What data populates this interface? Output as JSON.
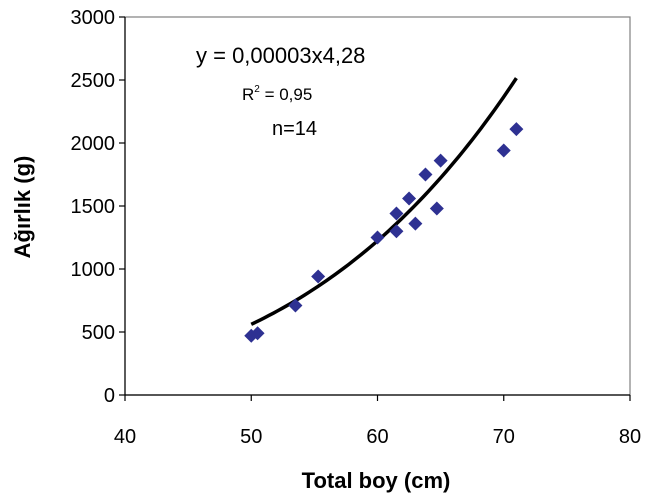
{
  "chart_data": {
    "type": "scatter",
    "title": "",
    "xlabel": "Total boy (cm)",
    "ylabel": "Ağırlık (g)",
    "xlim": [
      40,
      80
    ],
    "ylim": [
      0,
      3000
    ],
    "x_ticks": [
      40,
      50,
      60,
      70,
      80
    ],
    "y_ticks": [
      0,
      500,
      1000,
      1500,
      2000,
      2500,
      3000
    ],
    "x_tick_labels": [
      "40",
      "50",
      "60",
      "70",
      "80"
    ],
    "y_tick_labels": [
      "0",
      "500",
      "1000",
      "1500",
      "2000",
      "2500",
      "3000"
    ],
    "grid": false,
    "legend": "none",
    "series": [
      {
        "marker": "diamond",
        "color": "#2E3192",
        "points": [
          {
            "x": 50.0,
            "y": 470
          },
          {
            "x": 50.5,
            "y": 490
          },
          {
            "x": 53.5,
            "y": 710
          },
          {
            "x": 55.3,
            "y": 940
          },
          {
            "x": 60.0,
            "y": 1250
          },
          {
            "x": 61.5,
            "y": 1300
          },
          {
            "x": 61.5,
            "y": 1440
          },
          {
            "x": 62.5,
            "y": 1560
          },
          {
            "x": 63.0,
            "y": 1360
          },
          {
            "x": 63.8,
            "y": 1750
          },
          {
            "x": 64.7,
            "y": 1480
          },
          {
            "x": 65.0,
            "y": 1860
          },
          {
            "x": 70.0,
            "y": 1940
          },
          {
            "x": 71.0,
            "y": 2110
          }
        ]
      }
    ],
    "trendline": {
      "type": "power",
      "coefficient": 3e-05,
      "exponent": 4.28,
      "x_range": [
        50,
        71
      ],
      "color": "#000000"
    },
    "annotations": {
      "equation": "y = 0,00003x4,28",
      "r2_prefix": "R",
      "r2_sup": "2",
      "r2_value": " = 0,95",
      "n": "n=14"
    }
  }
}
